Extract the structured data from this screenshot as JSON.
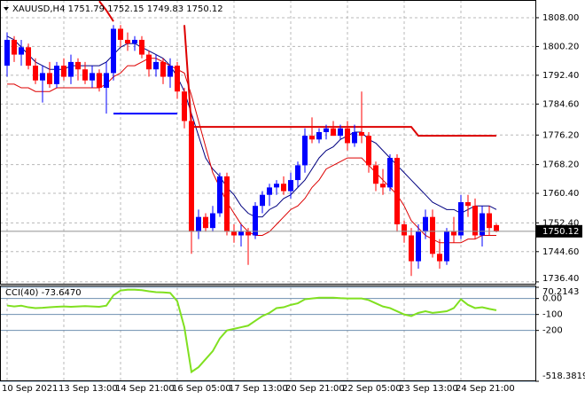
{
  "header": {
    "symbol": "XAUUSD,H4"
  },
  "chart_data": [
    {
      "type": "candlestick",
      "categories": [
        "10 Sep 2021",
        null,
        null,
        null,
        null,
        null,
        null,
        null,
        "13 Sep 13:00",
        null,
        null,
        null,
        null,
        null,
        null,
        null,
        "14 Sep 21:00",
        null,
        null,
        null,
        null,
        null,
        null,
        null,
        "16 Sep 05:00",
        null,
        null,
        null,
        null,
        null,
        null,
        null,
        "17 Sep 13:00",
        null,
        null,
        null,
        null,
        null,
        null,
        null,
        "20 Sep 21:00",
        null,
        null,
        null,
        null,
        null,
        null,
        null,
        "22 Sep 05:00",
        null,
        null,
        null,
        null,
        null,
        null,
        null,
        "23 Sep 13:00",
        null,
        null,
        null,
        null,
        null,
        null,
        null,
        "24 Sep 21:00",
        null,
        null,
        null,
        null,
        null
      ],
      "open": [
        1795,
        1802,
        1798,
        1800,
        1795,
        1791,
        1793,
        1790,
        1795,
        1792,
        1796,
        1794,
        1791,
        1793,
        1789,
        1793,
        1805,
        1802,
        1801,
        1802,
        1798,
        1794,
        1796,
        1792,
        1795,
        1788,
        1780,
        1750,
        1754,
        1751,
        1755,
        1765,
        1750,
        1749,
        1750,
        1749,
        1757,
        1760,
        1762,
        1763,
        1761,
        1764,
        1768,
        1776,
        1775,
        1777,
        1778,
        1776,
        1778,
        1774,
        1777,
        1776,
        1768,
        1763,
        1762,
        1770,
        1752,
        1749,
        1742,
        1750,
        1754,
        1744,
        1742,
        1750,
        1749,
        1758,
        1757,
        1749,
        1755,
        1751.79
      ],
      "high": [
        1804,
        1803,
        1802,
        1801,
        1797,
        1795,
        1796,
        1796,
        1797,
        1798,
        1797,
        1796,
        1795,
        1794,
        1796,
        1806,
        1806,
        1804,
        1803,
        1803,
        1799,
        1798,
        1797,
        1797,
        1796,
        1789,
        1782,
        1756,
        1755,
        1757,
        1766,
        1766,
        1752,
        1752,
        1751,
        1758,
        1761,
        1763,
        1764,
        1765,
        1766,
        1769,
        1778,
        1781,
        1778,
        1779,
        1780,
        1779,
        1780,
        1779,
        1788,
        1777,
        1769,
        1767,
        1771,
        1771,
        1753,
        1751,
        1752,
        1756,
        1756,
        1748,
        1751,
        1754,
        1760,
        1760,
        1759,
        1757,
        1757,
        1752.15
      ],
      "low": [
        1792,
        1796,
        1795,
        1794,
        1790,
        1785,
        1789,
        1789,
        1791,
        1790,
        1791,
        1790,
        1789,
        1788,
        1782,
        1791,
        1800,
        1799,
        1799,
        1797,
        1792,
        1792,
        1790,
        1789,
        1786,
        1778,
        1744,
        1748,
        1750,
        1750,
        1754,
        1749,
        1747,
        1746,
        1741,
        1748,
        1755,
        1757,
        1760,
        1760,
        1759,
        1762,
        1766,
        1774,
        1774,
        1775,
        1776,
        1775,
        1772,
        1773,
        1774,
        1766,
        1761,
        1760,
        1761,
        1750,
        1747,
        1738,
        1740,
        1748,
        1743,
        1740,
        1741,
        1747,
        1748,
        1754,
        1748,
        1746,
        1749,
        1749.83
      ],
      "close": [
        1802,
        1798,
        1800,
        1795,
        1791,
        1793,
        1790,
        1795,
        1792,
        1796,
        1794,
        1791,
        1793,
        1789,
        1793,
        1805,
        1802,
        1801,
        1802,
        1798,
        1794,
        1796,
        1792,
        1795,
        1788,
        1780,
        1750,
        1754,
        1751,
        1755,
        1765,
        1750,
        1749,
        1750,
        1749,
        1757,
        1760,
        1762,
        1763,
        1761,
        1764,
        1768,
        1776,
        1775,
        1777,
        1778,
        1776,
        1778,
        1774,
        1777,
        1776,
        1768,
        1763,
        1762,
        1770,
        1752,
        1749,
        1742,
        1750,
        1754,
        1744,
        1742,
        1750,
        1749,
        1758,
        1757,
        1749,
        1755,
        1751,
        1750.12
      ],
      "up_color": "#0000ff",
      "down_color": "#ff0000",
      "series": [
        {
          "color": "#000080",
          "values": [
            1803,
            1802,
            1800,
            1798,
            1796,
            1795,
            1794,
            1794,
            1794,
            1795,
            1795,
            1795,
            1795,
            1795,
            1796,
            1798,
            1800,
            1801,
            1801,
            1800,
            1799,
            1798,
            1797,
            1795,
            1792,
            1788,
            1782,
            1776,
            1770,
            1767,
            1765,
            1762,
            1760,
            1757,
            1755,
            1754,
            1754,
            1756,
            1757,
            1759,
            1760,
            1762,
            1764,
            1767,
            1770,
            1772,
            1773,
            1775,
            1776,
            1777,
            1777,
            1775,
            1774,
            1772,
            1770,
            1768,
            1766,
            1764,
            1762,
            1760,
            1758,
            1757,
            1756,
            1756,
            1755,
            1756,
            1757,
            1757,
            1757,
            1756
          ]
        },
        {
          "color": "#dd0000",
          "values": [
            1790,
            1790,
            1789,
            1789,
            1788,
            1788,
            1788,
            1789,
            1789,
            1789,
            1789,
            1789,
            1789,
            1789,
            1790,
            1792,
            1793,
            1795,
            1795,
            1796,
            1797,
            1797,
            1796,
            1795,
            1794,
            1793,
            1787,
            1780,
            1773,
            1766,
            1762,
            1758,
            1755,
            1752,
            1750,
            1749,
            1749,
            1750,
            1752,
            1754,
            1756,
            1757,
            1759,
            1762,
            1764,
            1767,
            1768,
            1769,
            1770,
            1770,
            1770,
            1768,
            1766,
            1764,
            1762,
            1760,
            1757,
            1753,
            1751,
            1749,
            1748,
            1747,
            1747,
            1747,
            1747,
            1748,
            1748,
            1749,
            1749,
            1749
          ]
        },
        {
          "color": "#0000ff",
          "width": 2,
          "values": [
            null,
            null,
            null,
            null,
            null,
            null,
            null,
            null,
            null,
            null,
            null,
            null,
            null,
            null,
            null,
            1782,
            1782,
            1782,
            1782,
            1782,
            1782,
            1782,
            1782,
            1782,
            1782,
            null,
            null,
            null,
            null,
            null,
            null,
            null,
            null,
            null,
            null,
            null,
            null,
            null,
            null,
            null,
            null,
            null,
            null,
            null,
            null,
            null,
            null,
            null,
            null,
            null,
            null,
            null,
            null,
            null,
            null,
            null,
            null,
            null,
            null,
            null,
            null,
            null,
            null,
            null,
            null,
            null,
            null,
            null,
            null,
            null
          ]
        },
        {
          "color": "#dd0000",
          "width": 2,
          "values": [
            null,
            null,
            null,
            null,
            null,
            null,
            null,
            null,
            null,
            null,
            null,
            null,
            null,
            1812.5,
            1810,
            1807,
            null,
            null,
            null,
            null,
            null,
            null,
            null,
            null,
            null,
            1806,
            1778.4,
            1778.4,
            1778.4,
            1778.4,
            1778.4,
            1778.4,
            1778.4,
            1778.4,
            1778.4,
            1778.4,
            1778.4,
            1778.4,
            1778.4,
            1778.4,
            1778.4,
            1778.4,
            1778.4,
            1778.4,
            1778.4,
            1778.4,
            1778.4,
            1778.4,
            1778.4,
            1778.4,
            1778.4,
            1778.4,
            1778.4,
            1778.4,
            1778.4,
            1778.4,
            1778.4,
            1778.4,
            1776,
            1776,
            1776,
            1776,
            1776,
            1776,
            1776,
            1776,
            1776,
            1776,
            1776,
            1776
          ]
        }
      ],
      "ylim": [
        1735.9,
        1812.8
      ],
      "yticks": [
        {
          "value": 1808,
          "label": "1808.00"
        },
        {
          "value": 1800.2,
          "label": "1800.20"
        },
        {
          "value": 1792.4,
          "label": "1792.40"
        },
        {
          "value": 1784.6,
          "label": "1784.60"
        },
        {
          "value": 1776.2,
          "label": "1776.20"
        },
        {
          "value": 1768.2,
          "label": "1768.20"
        },
        {
          "value": 1760.4,
          "label": "1760.40"
        },
        {
          "value": 1752.4,
          "label": "1752.40"
        },
        {
          "value": 1744.6,
          "label": "1744.60"
        },
        {
          "value": 1736.4,
          "label": "1736.40"
        }
      ],
      "grid": true
    },
    {
      "type": "line",
      "title": "CCI(40) -73.6470",
      "color": "#80e020",
      "values": [
        -44,
        -50,
        -45,
        -55,
        -60,
        -58,
        -55,
        -52,
        -50,
        -52,
        -50,
        -48,
        -50,
        -52,
        -45,
        20,
        50,
        55,
        55,
        52,
        45,
        40,
        38,
        35,
        -17,
        -180,
        -460,
        -430,
        -380,
        -330,
        -250,
        -200,
        -190,
        -180,
        -170,
        -140,
        -110,
        -90,
        -60,
        -55,
        -40,
        -30,
        -5,
        0,
        5,
        5,
        5,
        2,
        0,
        0,
        0,
        -10,
        -30,
        -50,
        -60,
        -80,
        -100,
        -110,
        -90,
        -80,
        -90,
        -85,
        -80,
        -60,
        -5,
        -40,
        -60,
        -55,
        -65,
        -73.647
      ],
      "ylim": [
        -518.3819,
        70.2143
      ],
      "yticks": [
        70.2143,
        {
          "value": 0,
          "label": "0.00"
        },
        -100,
        -200,
        -518.3819
      ]
    }
  ]
}
